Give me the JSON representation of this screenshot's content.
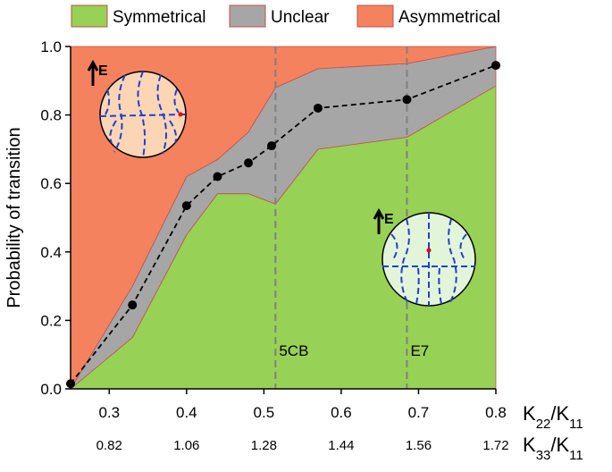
{
  "chart_data": {
    "type": "stacked_area",
    "ylabel": "Probability of transition",
    "xlabel": [
      "K",
      "22",
      "/K",
      "11"
    ],
    "x2label": [
      "K",
      "33",
      "/K",
      "11"
    ],
    "x": [
      0.25,
      0.33,
      0.4,
      0.44,
      0.48,
      0.515,
      0.57,
      0.685,
      0.8
    ],
    "series": [
      {
        "name": "Symmetrical",
        "color": "#97d155",
        "values": [
          0,
          0.15,
          0.45,
          0.57,
          0.57,
          0.54,
          0.7,
          0.735,
          0.885
        ]
      },
      {
        "name": "Unclear",
        "color": "#a6a6a6",
        "values": [
          0,
          0.15,
          0.17,
          0.1,
          0.18,
          0.34,
          0.235,
          0.215,
          0.115
        ]
      },
      {
        "name": "Asymmetrical",
        "color": "#f4825f",
        "values": [
          1,
          0.7,
          0.38,
          0.33,
          0.25,
          0.12,
          0.065,
          0.05,
          0
        ]
      }
    ],
    "line": {
      "color": "#000000",
      "x": [
        0.25,
        0.33,
        0.4,
        0.44,
        0.48,
        0.51,
        0.57,
        0.685,
        0.8
      ],
      "values": [
        0.015,
        0.245,
        0.535,
        0.62,
        0.66,
        0.71,
        0.82,
        0.845,
        0.945
      ]
    },
    "xlim": [
      0.25,
      0.8
    ],
    "ylim": [
      0,
      1
    ],
    "xticks": [
      0.3,
      0.4,
      0.5,
      0.6,
      0.7,
      0.8
    ],
    "x2ticks": [
      {
        "value": 0.3,
        "label": "0.82"
      },
      {
        "value": 0.4,
        "label": "1.06"
      },
      {
        "value": 0.5,
        "label": "1.28"
      },
      {
        "value": 0.6,
        "label": "1.44"
      },
      {
        "value": 0.7,
        "label": "1.56"
      },
      {
        "value": 0.8,
        "label": "1.72"
      }
    ],
    "yticks": [
      {
        "value": 0,
        "label": "0.0"
      },
      {
        "value": 0.2,
        "label": "0.2"
      },
      {
        "value": 0.4,
        "label": "0.4"
      },
      {
        "value": 0.6,
        "label": "0.6"
      },
      {
        "value": 0.8,
        "label": "0.8"
      },
      {
        "value": 1,
        "label": "1.0"
      }
    ],
    "vlines": [
      {
        "x": 0.515,
        "text": "5CB"
      },
      {
        "x": 0.685,
        "text": "E7"
      }
    ],
    "inset_labels": [
      "E",
      "E"
    ],
    "legend": "top"
  }
}
